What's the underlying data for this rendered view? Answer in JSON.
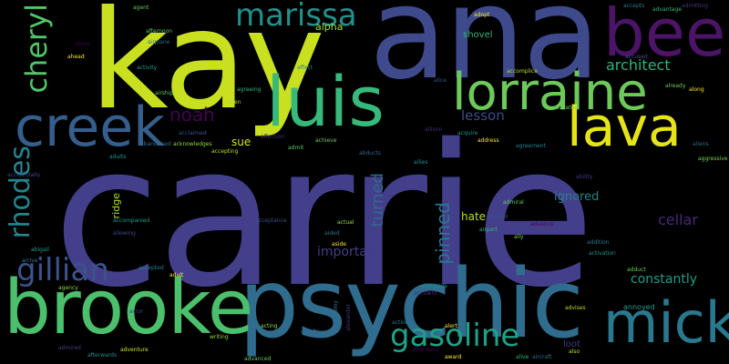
{
  "words": [
    {
      "id": "carrie",
      "text": "carrie",
      "color": "#443f8a"
    },
    {
      "id": "kay",
      "text": "kay",
      "color": "#c8e01f"
    },
    {
      "id": "ana",
      "text": "ana",
      "color": "#3e4a8c"
    },
    {
      "id": "bee",
      "text": "bee",
      "color": "#4b1466"
    },
    {
      "id": "psychic",
      "text": "psychic",
      "color": "#2f6c8e"
    },
    {
      "id": "luis",
      "text": "luis",
      "color": "#36b97a"
    },
    {
      "id": "lorraine",
      "text": "lorraine",
      "color": "#6cc95a"
    },
    {
      "id": "brooke",
      "text": "brooke",
      "color": "#4cbf6c"
    },
    {
      "id": "creek",
      "text": "creek",
      "color": "#355e8c"
    },
    {
      "id": "mick",
      "text": "mick",
      "color": "#29788e"
    },
    {
      "id": "lava",
      "text": "lava",
      "color": "#e5e419"
    },
    {
      "id": "marissa",
      "text": "marissa",
      "color": "#21918c"
    },
    {
      "id": "cheryl",
      "text": "cheryl",
      "color": "#51c56a"
    },
    {
      "id": "gillian",
      "text": "gillian",
      "color": "#3b528b"
    },
    {
      "id": "rhodes",
      "text": "rhodes",
      "color": "#25858e"
    },
    {
      "id": "gasoline",
      "text": "gasoline",
      "color": "#1fa187"
    },
    {
      "id": "noah",
      "text": "noah",
      "color": "#440154"
    },
    {
      "id": "architect",
      "text": "architect",
      "color": "#2eb37c"
    },
    {
      "id": "pinned",
      "text": "pinned",
      "color": "#2a788e"
    },
    {
      "id": "turned",
      "text": "turned",
      "color": "#31688e"
    },
    {
      "id": "constantly",
      "text": "constantly",
      "color": "#1f9e89"
    },
    {
      "id": "cellar",
      "text": "cellar",
      "color": "#482878"
    },
    {
      "id": "lesson",
      "text": "lesson",
      "color": "#3e4a89"
    },
    {
      "id": "ignored",
      "text": "ignored",
      "color": "#26828e"
    },
    {
      "id": "important",
      "text": "important",
      "color": "#433e85"
    },
    {
      "id": "hate",
      "text": "hate",
      "color": "#b5de2b"
    },
    {
      "id": "sue",
      "text": "sue",
      "color": "#d2e21b"
    },
    {
      "id": "alpha",
      "text": "alpha",
      "color": "#a0da39"
    },
    {
      "id": "shovel",
      "text": "shovel",
      "color": "#35b779"
    },
    {
      "id": "ridge",
      "text": "ridge",
      "color": "#addc30"
    },
    {
      "id": "loot",
      "text": "loot",
      "color": "#443983"
    },
    {
      "id": "annoyed",
      "text": "annoyed",
      "color": "#1fa088"
    },
    {
      "id": "activates",
      "text": "activates",
      "color": "#6ece58"
    },
    {
      "id": "accepts",
      "text": "accepts",
      "color": "#29788e"
    },
    {
      "id": "advantage",
      "text": "advantage",
      "color": "#35b779"
    },
    {
      "id": "admitting",
      "text": "admitting",
      "color": "#46327e"
    },
    {
      "id": "accused",
      "text": "accused",
      "color": "#3b528b"
    },
    {
      "id": "abandoned",
      "text": "abandoned",
      "color": "#2c728e"
    },
    {
      "id": "acknowledges",
      "text": "acknowledges",
      "color": "#8fd744"
    },
    {
      "id": "adopt",
      "text": "adopt",
      "color": "#fde725"
    },
    {
      "id": "agent",
      "text": "agent",
      "color": "#5ec962"
    },
    {
      "id": "airplane",
      "text": "airplane",
      "color": "#31688e"
    },
    {
      "id": "alone",
      "text": "alone",
      "color": "#440154"
    },
    {
      "id": "ahead",
      "text": "ahead",
      "color": "#fde725"
    },
    {
      "id": "alcohol",
      "text": "alcohol",
      "color": "#3b528b"
    },
    {
      "id": "addition",
      "text": "addition",
      "color": "#2a788e"
    },
    {
      "id": "activation",
      "text": "activation",
      "color": "#21918c"
    },
    {
      "id": "adduct",
      "text": "adduct",
      "color": "#6ece58"
    },
    {
      "id": "advises",
      "text": "advises",
      "color": "#b5de2b"
    },
    {
      "id": "action",
      "text": "action",
      "color": "#2a788e"
    },
    {
      "id": "alert",
      "text": "alert",
      "color": "#fde725"
    },
    {
      "id": "alongside",
      "text": "alongside",
      "color": "#21918c"
    },
    {
      "id": "accident",
      "text": "accident",
      "color": "#472d7b"
    },
    {
      "id": "acting",
      "text": "acting",
      "color": "#90d743"
    },
    {
      "id": "admits",
      "text": "admits",
      "color": "#31688e"
    },
    {
      "id": "actor",
      "text": "actor",
      "color": "#443983"
    },
    {
      "id": "advanced",
      "text": "advanced",
      "color": "#6ece58"
    },
    {
      "id": "adventure",
      "text": "adventure",
      "color": "#cde11d"
    },
    {
      "id": "airport",
      "text": "airport",
      "color": "#35b779"
    },
    {
      "id": "admiral",
      "text": "admiral",
      "color": "#5ec962"
    },
    {
      "id": "advance",
      "text": "advance",
      "color": "#440154"
    },
    {
      "id": "ally",
      "text": "ally",
      "color": "#7ad151"
    },
    {
      "id": "acquire",
      "text": "acquire",
      "color": "#21918c"
    },
    {
      "id": "address",
      "text": "address",
      "color": "#fde725"
    },
    {
      "id": "agreement",
      "text": "agreement",
      "color": "#26828e"
    },
    {
      "id": "actual",
      "text": "actual",
      "color": "#8fd744"
    },
    {
      "id": "aided",
      "text": "aided",
      "color": "#2c728e"
    },
    {
      "id": "aside",
      "text": "aside",
      "color": "#fde725"
    },
    {
      "id": "acceptance",
      "text": "acceptance",
      "color": "#3b528b"
    },
    {
      "id": "accomplice",
      "text": "accomplice",
      "color": "#b5de2b"
    },
    {
      "id": "affection",
      "text": "affection",
      "color": "#482878"
    },
    {
      "id": "admit",
      "text": "admit",
      "color": "#5ec962"
    },
    {
      "id": "abducts",
      "text": "abducts",
      "color": "#31688e"
    },
    {
      "id": "achieve",
      "text": "achieve",
      "color": "#6ece58"
    },
    {
      "id": "adults",
      "text": "adults",
      "color": "#21918c"
    },
    {
      "id": "accepting",
      "text": "accepting",
      "color": "#b5de2b"
    },
    {
      "id": "accompanied",
      "text": "accompanied",
      "color": "#1f9e89"
    },
    {
      "id": "allowing",
      "text": "allowing",
      "color": "#3e4a89"
    },
    {
      "id": "accepted",
      "text": "accepted",
      "color": "#26828e"
    },
    {
      "id": "adult",
      "text": "adult",
      "color": "#fde725"
    },
    {
      "id": "abigail",
      "text": "abigail",
      "color": "#1f9e89"
    },
    {
      "id": "writing",
      "text": "writing",
      "color": "#90d743"
    },
    {
      "id": "acclaimed",
      "text": "acclaimed",
      "color": "#3b528b"
    },
    {
      "id": "afterwards",
      "text": "afterwards",
      "color": "#21918c"
    },
    {
      "id": "admired",
      "text": "admired",
      "color": "#443983"
    },
    {
      "id": "agreeing",
      "text": "agreeing",
      "color": "#35b779"
    },
    {
      "id": "arrive",
      "text": "arrive",
      "color": "#2a788e"
    },
    {
      "id": "alien",
      "text": "alien",
      "color": "#b5de2b"
    },
    {
      "id": "airship",
      "text": "airship",
      "color": "#5ec962"
    },
    {
      "id": "aircraft",
      "text": "aircraft",
      "color": "#2c728e"
    },
    {
      "id": "alive",
      "text": "alive",
      "color": "#35b779"
    },
    {
      "id": "award",
      "text": "award",
      "color": "#fde725"
    },
    {
      "id": "afterward",
      "text": "afterward",
      "color": "#440154"
    },
    {
      "id": "aliens",
      "text": "aliens",
      "color": "#31688e"
    },
    {
      "id": "ability",
      "text": "ability",
      "color": "#443983"
    },
    {
      "id": "aggressive",
      "text": "aggressive",
      "color": "#7ad151"
    },
    {
      "id": "alice",
      "text": "alice",
      "color": "#3b528b"
    },
    {
      "id": "already",
      "text": "already",
      "color": "#6ece58"
    },
    {
      "id": "allies",
      "text": "allies",
      "color": "#21918c"
    },
    {
      "id": "along",
      "text": "along",
      "color": "#fde725"
    },
    {
      "id": "allison",
      "text": "allison",
      "color": "#482878"
    },
    {
      "id": "also",
      "text": "also",
      "color": "#b5de2b"
    },
    {
      "id": "activity",
      "text": "activity",
      "color": "#1f9e89"
    },
    {
      "id": "affect",
      "text": "affect",
      "color": "#26828e"
    },
    {
      "id": "accidentally",
      "text": "accidentally",
      "color": "#3e4a89"
    },
    {
      "id": "afternoon",
      "text": "afternoon",
      "color": "#5ec962"
    },
    {
      "id": "agency",
      "text": "agency",
      "color": "#90d743"
    },
    {
      "id": "academy",
      "text": "academy",
      "color": "#2c728e"
    },
    {
      "id": "alexander",
      "text": "alexander",
      "color": "#443983"
    }
  ]
}
